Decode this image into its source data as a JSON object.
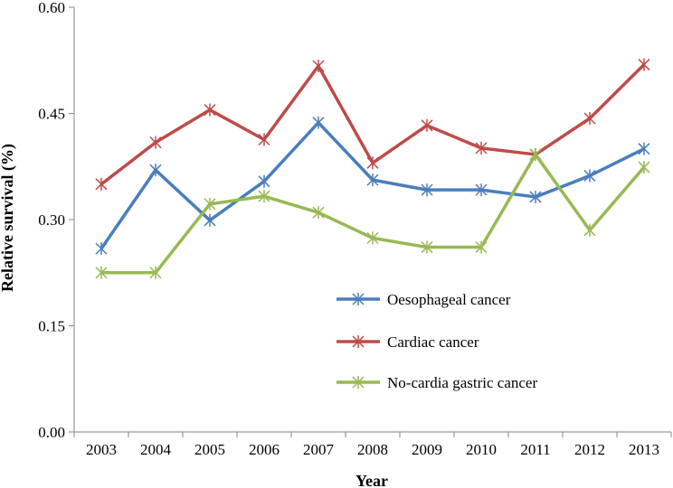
{
  "chart_data": {
    "type": "line",
    "xlabel": "Year",
    "ylabel": "Relative survival (%)",
    "categories": [
      "2003",
      "2004",
      "2005",
      "2006",
      "2007",
      "2008",
      "2009",
      "2010",
      "2011",
      "2012",
      "2013"
    ],
    "ylim": [
      0,
      0.6
    ],
    "yticks": [
      "0.00",
      "0.15",
      "0.30",
      "0.45",
      "0.60"
    ],
    "grid": false,
    "legend_position": "lower-right",
    "series": [
      {
        "name": "Oesophageal cancer",
        "color": "#4a7ebb",
        "values": [
          0.259,
          0.37,
          0.299,
          0.354,
          0.437,
          0.356,
          0.342,
          0.342,
          0.332,
          0.362,
          0.4
        ]
      },
      {
        "name": "Cardiac cancer",
        "color": "#be4b48",
        "values": [
          0.35,
          0.409,
          0.455,
          0.413,
          0.517,
          0.38,
          0.433,
          0.401,
          0.392,
          0.443,
          0.519
        ]
      },
      {
        "name": "No-cardia gastric cancer",
        "color": "#98b954",
        "values": [
          0.225,
          0.225,
          0.322,
          0.333,
          0.31,
          0.274,
          0.261,
          0.261,
          0.392,
          0.285,
          0.374
        ]
      }
    ]
  }
}
